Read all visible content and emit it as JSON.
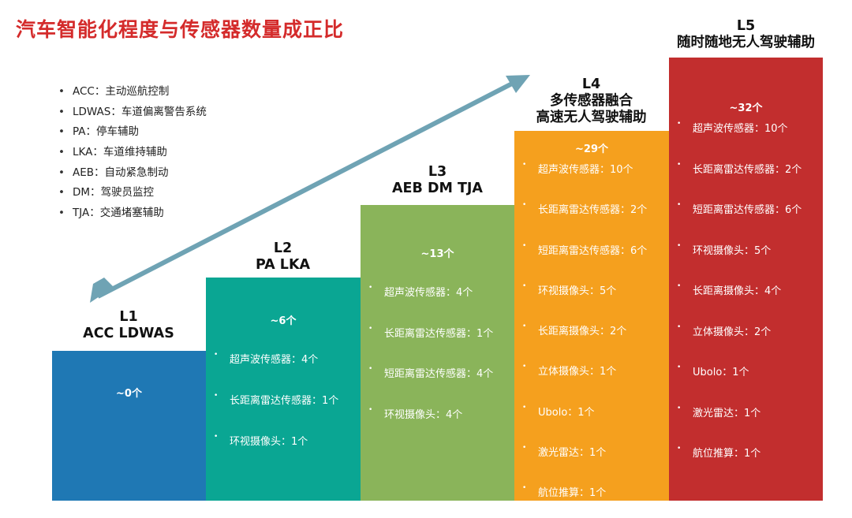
{
  "title": "汽车智能化程度与传感器数量成正比",
  "legend": [
    "ACC：主动巡航控制",
    "LDWAS：车道偏离警告系统",
    "PA：停车辅助",
    "LKA：车道维持辅助",
    "AEB：自动紧急制动",
    "DM：驾驶员监控",
    "TJA：交通堵塞辅助"
  ],
  "colors": {
    "title": "#d42b2b",
    "L1": "#1f78b4",
    "L2": "#0aa693",
    "L3": "#8ab45a",
    "L4": "#f5a01e",
    "L5": "#c22e2e",
    "arrow": "#6fa3b4"
  },
  "levels": [
    {
      "name": "L1",
      "subtitle": "ACC LDWAS",
      "count": "~0个",
      "items": []
    },
    {
      "name": "L2",
      "subtitle": "PA LKA",
      "count": "~6个",
      "items": [
        "超声波传感器：4个",
        "长距离雷达传感器：1个",
        "环视摄像头：1个"
      ]
    },
    {
      "name": "L3",
      "subtitle": "AEB DM TJA",
      "count": "~13个",
      "items": [
        "超声波传感器：4个",
        "长距离雷达传感器：1个",
        "短距离雷达传感器：4个",
        "环视摄像头：4个"
      ]
    },
    {
      "name": "L4",
      "subtitle": "多传感器融合",
      "subtitle2": "高速无人驾驶辅助",
      "count": "~29个",
      "items": [
        "超声波传感器：10个",
        "长距离雷达传感器：2个",
        "短距离雷达传感器：6个",
        "环视摄像头：5个",
        "长距离摄像头：2个",
        "立体摄像头：1个",
        "Ubolo：1个",
        "激光雷达：1个",
        "航位推算：1个"
      ]
    },
    {
      "name": "L5",
      "subtitle": "随时随地无人驾驶辅助",
      "count": "~32个",
      "items": [
        "超声波传感器：10个",
        "长距离雷达传感器：2个",
        "短距离雷达传感器：6个",
        "环视摄像头：5个",
        "长距离摄像头：4个",
        "立体摄像头：2个",
        "Ubolo：1个",
        "激光雷达：1个",
        "航位推算：1个"
      ]
    }
  ]
}
